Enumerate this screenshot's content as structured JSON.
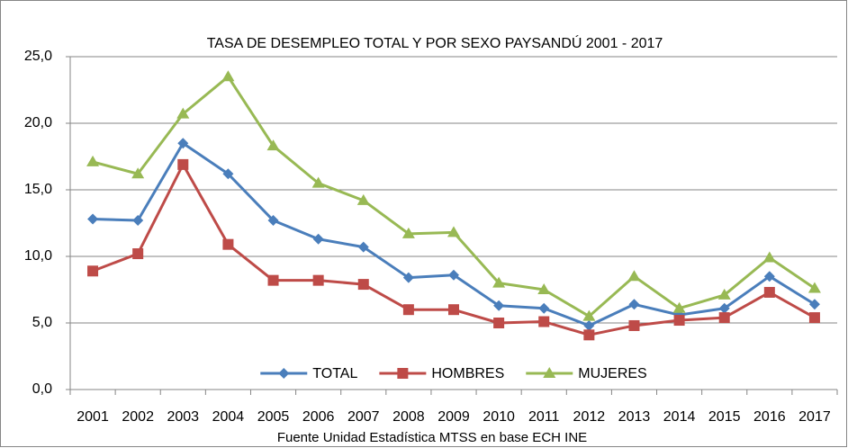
{
  "chart_data": {
    "type": "line",
    "title": "TASA DE DESEMPLEO TOTAL Y POR SEXO PAYSANDÚ 2001 - 2017",
    "x_label": "Fuente Unidad Estadística MTSS en base ECH INE",
    "categories": [
      "2001",
      "2002",
      "2003",
      "2004",
      "2005",
      "2006",
      "2007",
      "2008",
      "2009",
      "2010",
      "2011",
      "2012",
      "2013",
      "2014",
      "2015",
      "2016",
      "2017"
    ],
    "series": [
      {
        "name": "TOTAL",
        "color": "#4a7ebb",
        "marker": "diamond",
        "values": [
          12.8,
          12.7,
          18.5,
          16.2,
          12.7,
          11.3,
          10.7,
          8.4,
          8.6,
          6.3,
          6.1,
          4.8,
          6.4,
          5.6,
          6.1,
          8.5,
          6.4
        ]
      },
      {
        "name": "HOMBRES",
        "color": "#be4b48",
        "marker": "square",
        "values": [
          8.9,
          10.2,
          16.9,
          10.9,
          8.2,
          8.2,
          7.9,
          6.0,
          6.0,
          5.0,
          5.1,
          4.1,
          4.8,
          5.2,
          5.4,
          7.3,
          5.4
        ]
      },
      {
        "name": "MUJERES",
        "color": "#98b954",
        "marker": "triangle",
        "values": [
          17.1,
          16.2,
          20.7,
          23.5,
          18.3,
          15.5,
          14.2,
          11.7,
          11.8,
          8.0,
          7.5,
          5.5,
          8.5,
          6.1,
          7.1,
          9.9,
          7.6
        ]
      }
    ],
    "ylim": [
      0,
      25
    ],
    "yticks": [
      {
        "value": 0,
        "label": "0,0"
      },
      {
        "value": 5,
        "label": "5,0"
      },
      {
        "value": 10,
        "label": "10,0"
      },
      {
        "value": 15,
        "label": "15,0"
      },
      {
        "value": 20,
        "label": "20,0"
      },
      {
        "value": 25,
        "label": "25,0"
      }
    ],
    "grid": true,
    "legend": "bottom"
  }
}
